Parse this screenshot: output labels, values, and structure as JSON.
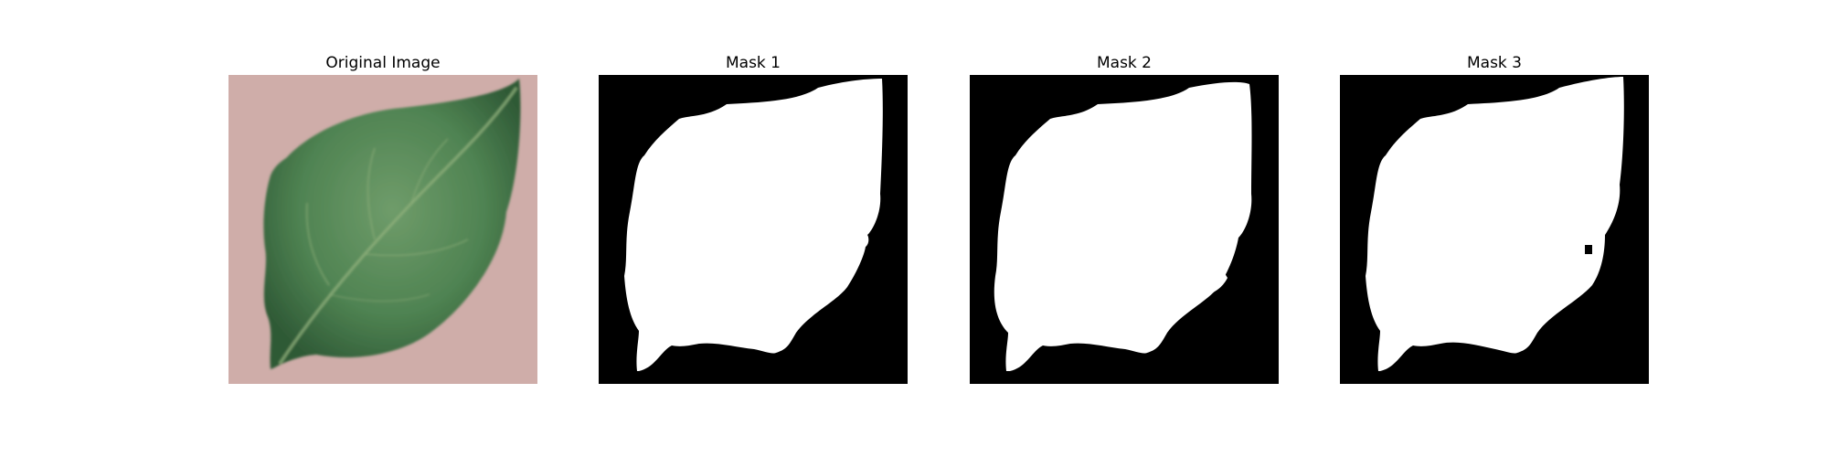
{
  "panels": [
    {
      "title": "Original Image",
      "icon": "leaf-photo"
    },
    {
      "title": "Mask 1",
      "icon": "binary-mask"
    },
    {
      "title": "Mask 2",
      "icon": "binary-mask"
    },
    {
      "title": "Mask 3",
      "icon": "binary-mask"
    }
  ],
  "colors": {
    "background": "#d9b8b4",
    "leaf": "#4c7d4f",
    "mask_foreground": "#ffffff",
    "mask_background": "#000000"
  }
}
